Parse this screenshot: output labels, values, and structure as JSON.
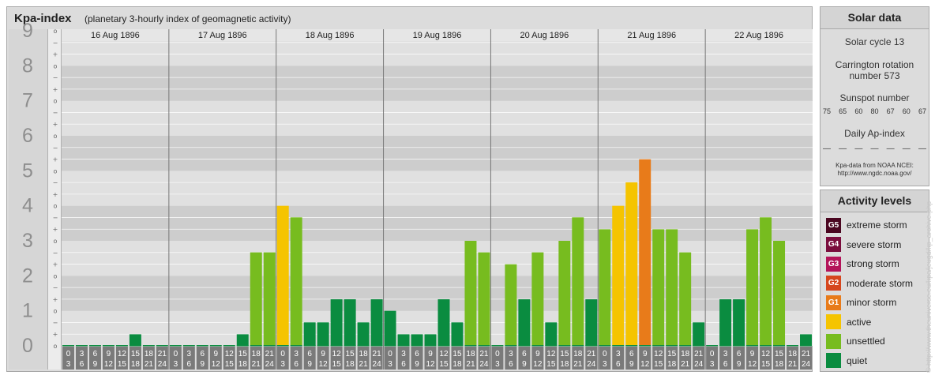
{
  "header": {
    "title": "Kpa-index",
    "subtitle": "(planetary 3-hourly index of geomagnetic activity)"
  },
  "chart_data": {
    "type": "bar",
    "ylim": [
      0,
      9
    ],
    "y_major_ticks": [
      "0",
      "1",
      "2",
      "3",
      "4",
      "5",
      "6",
      "7",
      "8",
      "9"
    ],
    "y_minor_labels": [
      "−",
      "o",
      "+"
    ],
    "days": [
      "16 Aug 1896",
      "17 Aug 1896",
      "18 Aug 1896",
      "19 Aug 1896",
      "20 Aug 1896",
      "21 Aug 1896",
      "22 Aug 1896"
    ],
    "interval_start_labels": [
      "0",
      "3",
      "6",
      "9",
      "12",
      "15",
      "18",
      "21"
    ],
    "interval_end_labels": [
      "3",
      "6",
      "9",
      "12",
      "15",
      "18",
      "21",
      "24"
    ],
    "values": [
      [
        0,
        0,
        0,
        0,
        0,
        0.33,
        0,
        0
      ],
      [
        0,
        0,
        0,
        0,
        0,
        0.33,
        2.67,
        2.67
      ],
      [
        4,
        3.67,
        0.67,
        0.67,
        1.33,
        1.33,
        0.67,
        1.33
      ],
      [
        1,
        0.33,
        0.33,
        0.33,
        1.33,
        0.67,
        3,
        2.67
      ],
      [
        0,
        2.33,
        1.33,
        2.67,
        0.67,
        3,
        3.67,
        1.33
      ],
      [
        3.33,
        4,
        4.67,
        5.33,
        3.33,
        3.33,
        2.67,
        0.67
      ],
      [
        0,
        1.33,
        1.33,
        3.33,
        3.67,
        3,
        0,
        0.33
      ]
    ],
    "level_colors": {
      "quiet": "#0a8c40",
      "unsettled": "#77bc1f",
      "active": "#f5c400",
      "G1": "#e87b1a",
      "G2": "#d6461d",
      "G3": "#b4145a",
      "G4": "#7a0d3d",
      "G5": "#4a0620"
    }
  },
  "solar": {
    "title": "Solar data",
    "cycle": "Solar cycle 13",
    "carrington_line1": "Carrington rotation",
    "carrington_line2": "number 573",
    "sunspot_title": "Sunspot number",
    "sunspot_values": [
      "75",
      "65",
      "60",
      "80",
      "67",
      "60",
      "67"
    ],
    "ap_title": "Daily Ap-index",
    "ap_values": [
      "—",
      "—",
      "—",
      "—",
      "—",
      "—",
      "—"
    ],
    "credit_line1": "Kpa-data from NOAA NCEI:",
    "credit_line2": "http://www.ngdc.noaa.gov/"
  },
  "activity": {
    "title": "Activity levels",
    "levels": [
      {
        "code": "G5",
        "label": "extreme storm",
        "color": "#4a0620"
      },
      {
        "code": "G4",
        "label": "severe storm",
        "color": "#7a0d3d"
      },
      {
        "code": "G3",
        "label": "strong storm",
        "color": "#b4145a"
      },
      {
        "code": "G2",
        "label": "moderate storm",
        "color": "#d6461d"
      },
      {
        "code": "G1",
        "label": "minor storm",
        "color": "#e87b1a"
      },
      {
        "code": "",
        "label": "active",
        "color": "#f5c400"
      },
      {
        "code": "",
        "label": "unsettled",
        "color": "#77bc1f"
      },
      {
        "code": "",
        "label": "quiet",
        "color": "#0a8c40"
      }
    ]
  },
  "credit_vertical": "© http://www.theuniverse.eu/kpa/jeugd/kp_archive.php"
}
